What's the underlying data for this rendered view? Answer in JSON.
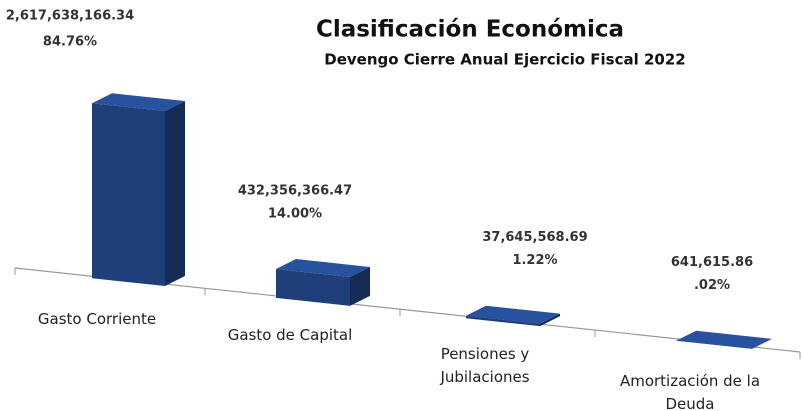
{
  "chart_data": {
    "type": "bar3d",
    "title": "Clasificación Económica",
    "subtitle": "Devengo  Cierre Anual Ejercicio Fiscal  2022",
    "categories": [
      "Gasto Corriente",
      "Gasto de Capital",
      "Pensiones y Jubilaciones",
      "Amortización de la Deuda"
    ],
    "values": [
      2617638166.34,
      432356366.47,
      37645568.69,
      641615.86
    ],
    "value_labels": [
      "2,617,638,166.34",
      "432,356,366.47",
      "37,645,568.69",
      "641,615.86"
    ],
    "shares": [
      84.76,
      14.0,
      1.22,
      0.02
    ],
    "share_labels": [
      "84.76%",
      "14.00%",
      "1.22%",
      ".02%"
    ],
    "color": "#1f3f7a"
  }
}
